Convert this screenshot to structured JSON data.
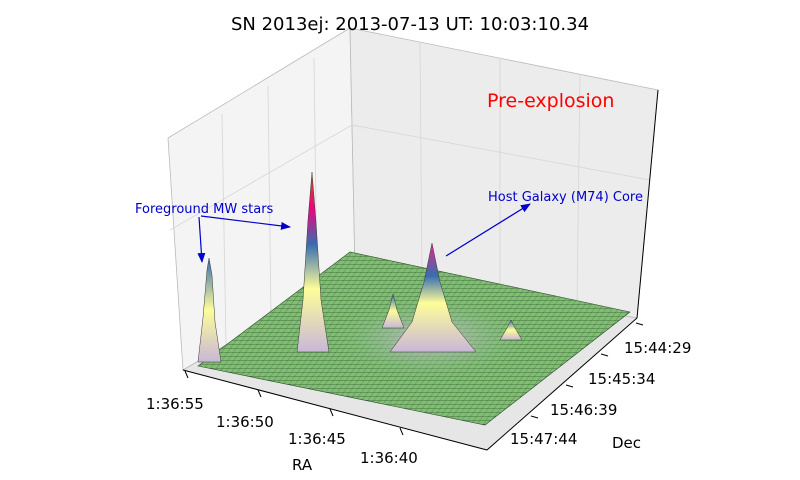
{
  "chart_data": {
    "type": "surface3d",
    "title": "SN 2013ej: 2013-07-13  UT: 10:03:10.34",
    "xlabel": "RA",
    "ylabel": "Dec",
    "x_ticks": [
      "1:36:55",
      "1:36:50",
      "1:36:45",
      "1:36:40"
    ],
    "y_ticks": [
      "15:44:29",
      "15:45:34",
      "15:46:39",
      "15:47:44"
    ],
    "colormap": "Accent",
    "grid": true,
    "annotations": [
      {
        "text": "Pre-explosion",
        "color": "#ff0000"
      },
      {
        "text": "Foreground MW stars",
        "color": "#0000cc"
      },
      {
        "text": "Host Galaxy (M74) Core",
        "color": "#0000cc"
      }
    ],
    "features": [
      {
        "label": "Foreground MW stars",
        "ra": "1:36:55",
        "relative_height": 0.45
      },
      {
        "label": "Foreground MW stars",
        "ra": "1:36:50",
        "relative_height": 1.0
      },
      {
        "label": "Host Galaxy (M74) Core",
        "ra": "1:36:44",
        "relative_height": 0.55
      }
    ]
  }
}
